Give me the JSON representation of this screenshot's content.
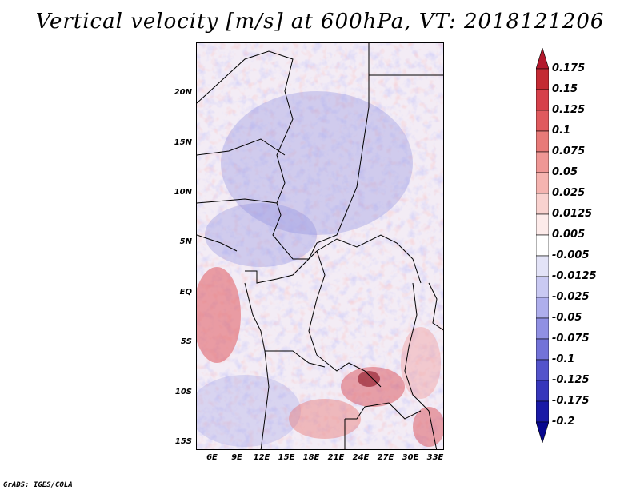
{
  "title": "Vertical velocity [m/s] at 600hPa, VT: 2018121206",
  "credit": "GrADS: IGES/COLA",
  "map": {
    "lat_ticks": [
      "20N",
      "15N",
      "10N",
      "5N",
      "EQ",
      "5S",
      "10S",
      "15S"
    ],
    "lon_ticks": [
      "6E",
      "9E",
      "12E",
      "15E",
      "18E",
      "21E",
      "24E",
      "27E",
      "30E",
      "33E"
    ]
  },
  "colorbar": {
    "labels": [
      "0.175",
      "0.15",
      "0.125",
      "0.1",
      "0.075",
      "0.05",
      "0.025",
      "0.0125",
      "0.005",
      "-0.005",
      "-0.0125",
      "-0.025",
      "-0.05",
      "-0.075",
      "-0.1",
      "-0.125",
      "-0.175",
      "-0.2"
    ],
    "colors": [
      "#b2182b",
      "#c42a33",
      "#d6404a",
      "#e05a5e",
      "#e87a78",
      "#ef9795",
      "#f5b4b0",
      "#f9d2cf",
      "#fdebea",
      "#ffffff",
      "#e3e3f7",
      "#c9c9f2",
      "#aeaeec",
      "#9090e3",
      "#7272d8",
      "#5353cb",
      "#3636bb",
      "#1a1aa6",
      "#07078f"
    ]
  }
}
